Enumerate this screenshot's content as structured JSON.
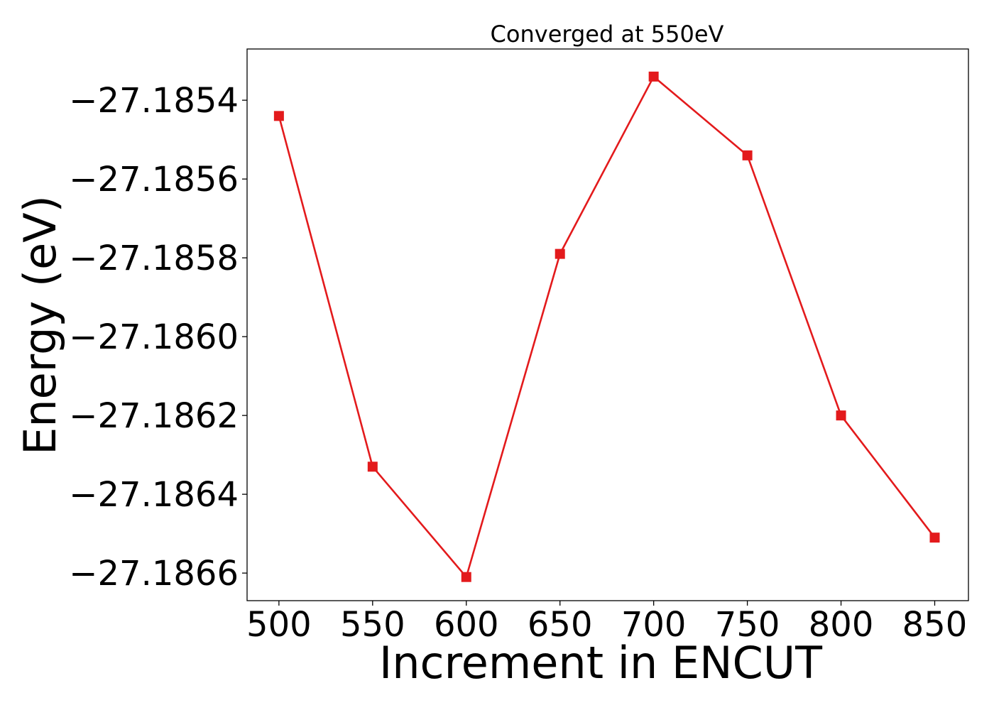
{
  "chart_data": {
    "type": "line",
    "title": "Converged at 550eV",
    "xlabel": "Increment in ENCUT",
    "ylabel": "Energy (eV)",
    "x": [
      500,
      550,
      600,
      650,
      700,
      750,
      800,
      850
    ],
    "series": [
      {
        "values": [
          -27.18544,
          -27.18633,
          -27.18661,
          -27.18579,
          -27.18534,
          -27.18554,
          -27.1862,
          -27.18651
        ],
        "color": "#e31a1c",
        "marker": "square"
      }
    ],
    "xlim": [
      483,
      868
    ],
    "ylim": [
      -27.18667,
      -27.18527
    ],
    "xticks": [
      500,
      550,
      600,
      650,
      700,
      750,
      800,
      850
    ],
    "xtick_labels": [
      "500",
      "550",
      "600",
      "650",
      "700",
      "750",
      "800",
      "850"
    ],
    "yticks": [
      -27.1854,
      -27.1856,
      -27.1858,
      -27.186,
      -27.1862,
      -27.1864,
      -27.1866
    ],
    "ytick_labels": [
      "−27.1854",
      "−27.1856",
      "−27.1858",
      "−27.1860",
      "−27.1862",
      "−27.1864",
      "−27.1866"
    ],
    "grid": false,
    "legend": false
  }
}
